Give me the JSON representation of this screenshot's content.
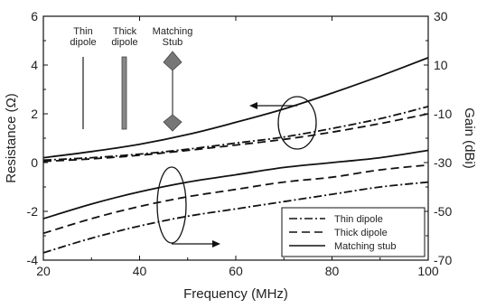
{
  "chart_data": {
    "type": "line",
    "xlabel": "Frequency (MHz)",
    "ylabel_left": "Resistance (Ω)",
    "ylabel_right": "Gain (dBi)",
    "xlim": [
      20,
      100
    ],
    "ylim_left": [
      -4,
      6
    ],
    "ylim_right": [
      -70,
      30
    ],
    "x_ticks": [
      "20",
      "40",
      "60",
      "80",
      "100"
    ],
    "y_left_ticks": [
      "-4",
      "-2",
      "0",
      "2",
      "4",
      "6"
    ],
    "y_right_ticks": [
      "-70",
      "-50",
      "-30",
      "-10",
      "10",
      "30"
    ],
    "grid": false,
    "legend_position": "bottom-right",
    "legend": [
      {
        "name": "Thin dipole",
        "style": "dash-dot"
      },
      {
        "name": "Thick dipole",
        "style": "dashed"
      },
      {
        "name": "Matching stub",
        "style": "solid"
      }
    ],
    "resistance_series": [
      {
        "name": "Thin dipole",
        "axis": "left",
        "style": "dash-dot",
        "x": [
          20,
          30,
          40,
          50,
          60,
          70,
          80,
          90,
          100
        ],
        "y": [
          0.1,
          0.2,
          0.35,
          0.55,
          0.8,
          1.05,
          1.4,
          1.8,
          2.3
        ]
      },
      {
        "name": "Thick dipole",
        "axis": "left",
        "style": "dashed",
        "x": [
          20,
          30,
          40,
          50,
          60,
          70,
          80,
          90,
          100
        ],
        "y": [
          0.05,
          0.15,
          0.3,
          0.5,
          0.72,
          0.95,
          1.25,
          1.6,
          2.0
        ]
      },
      {
        "name": "Matching stub",
        "axis": "left",
        "style": "solid",
        "x": [
          20,
          30,
          40,
          50,
          60,
          70,
          80,
          90,
          100
        ],
        "y": [
          0.2,
          0.45,
          0.75,
          1.15,
          1.65,
          2.2,
          2.85,
          3.55,
          4.3
        ]
      }
    ],
    "gain_series": [
      {
        "name": "Thin dipole",
        "axis": "right",
        "style": "dash-dot",
        "x": [
          20,
          30,
          40,
          50,
          60,
          70,
          80,
          90,
          100
        ],
        "y": [
          -67,
          -61,
          -56,
          -52,
          -49,
          -46,
          -43,
          -40,
          -38
        ]
      },
      {
        "name": "Thick dipole",
        "axis": "right",
        "style": "dashed",
        "x": [
          20,
          30,
          40,
          50,
          60,
          70,
          80,
          90,
          100
        ],
        "y": [
          -59,
          -53,
          -48,
          -44,
          -41,
          -38,
          -36,
          -33,
          -31
        ]
      },
      {
        "name": "Matching stub",
        "axis": "right",
        "style": "solid",
        "x": [
          20,
          30,
          40,
          50,
          60,
          70,
          80,
          90,
          100
        ],
        "y": [
          -53,
          -47,
          -42,
          -38,
          -35,
          -32,
          -30,
          -28,
          -25
        ]
      }
    ],
    "inset": {
      "labels": [
        "Thin\ndipole",
        "Thick\ndipole",
        "Matching\nStub"
      ]
    },
    "colors": {
      "line": "#111111",
      "background": "#ffffff"
    }
  }
}
